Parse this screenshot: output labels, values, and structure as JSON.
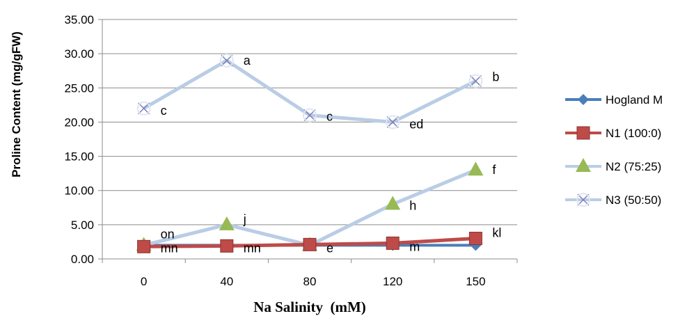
{
  "chart_data": {
    "type": "line",
    "title": "",
    "xlabel": "Na Salinity  (mM)",
    "ylabel": "Proline Content (mg/gFW)",
    "categories": [
      "0",
      "40",
      "80",
      "120",
      "150"
    ],
    "ylim": [
      0,
      35
    ],
    "yticks": [
      "0.00",
      "5.00",
      "10.00",
      "15.00",
      "20.00",
      "25.00",
      "30.00",
      "35.00"
    ],
    "grid": "horizontal",
    "legend_position": "right",
    "series": [
      {
        "name": "Hogland M",
        "values": [
          2,
          2,
          2,
          2,
          2
        ],
        "color": "#4a7ebb",
        "marker": "diamond"
      },
      {
        "name": "N1 (100:0)",
        "values": [
          1.8,
          1.9,
          2.1,
          2.3,
          3
        ],
        "color": "#be4b48",
        "marker": "square"
      },
      {
        "name": "N2 (75:25)",
        "values": [
          2,
          5,
          2,
          8,
          13
        ],
        "color": "#98b954",
        "line_color": "#b9cde5",
        "marker": "triangle"
      },
      {
        "name": "N3 (50:50)",
        "values": [
          22,
          29,
          21,
          20,
          26
        ],
        "color": "#b9cde5",
        "marker": "x"
      }
    ],
    "annotations": [
      {
        "x": "0",
        "y": 22,
        "text": "c"
      },
      {
        "x": "40",
        "y": 29,
        "text": "a"
      },
      {
        "x": "80",
        "y": 21,
        "text": "c"
      },
      {
        "x": "120",
        "y": 20,
        "text": "ed"
      },
      {
        "x": "150",
        "y": 26,
        "text": "b"
      },
      {
        "x": "150",
        "y": 13,
        "text": "f"
      },
      {
        "x": "120",
        "y": 8,
        "text": "h"
      },
      {
        "x": "40",
        "y": 5,
        "text": "j"
      },
      {
        "x": "0",
        "y": 2,
        "text": "on"
      },
      {
        "x": "0",
        "y": 2,
        "text": "mn"
      },
      {
        "x": "40",
        "y": 2,
        "text": "mn"
      },
      {
        "x": "80",
        "y": 2,
        "text": "e"
      },
      {
        "x": "120",
        "y": 2,
        "text": "m"
      },
      {
        "x": "150",
        "y": 3,
        "text": "kl"
      }
    ]
  }
}
